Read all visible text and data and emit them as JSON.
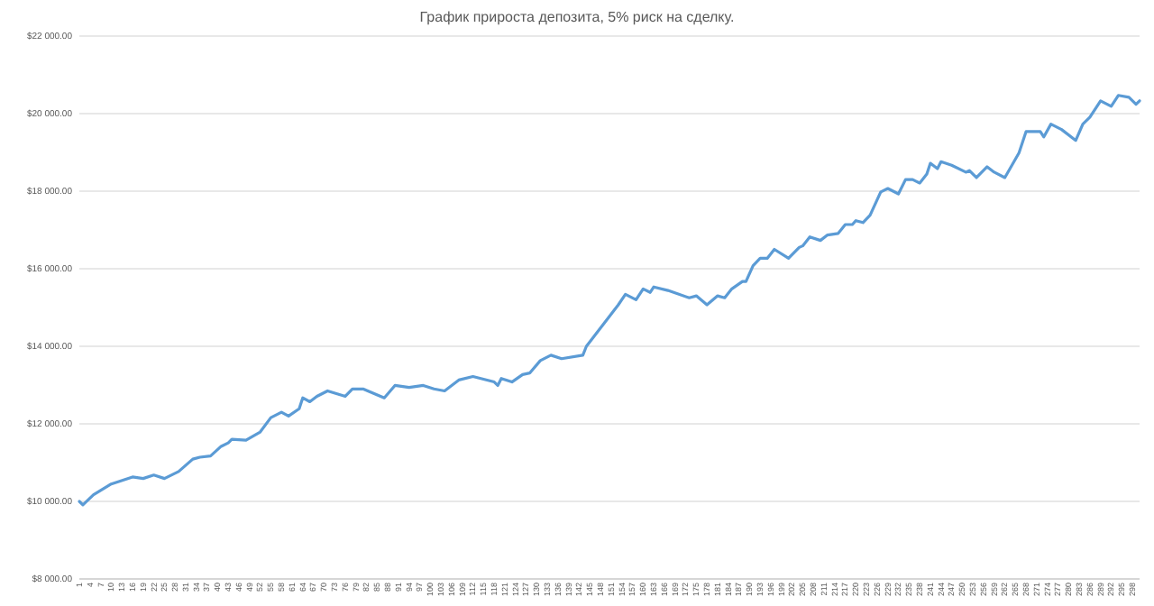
{
  "chart_data": {
    "type": "line",
    "title": "График прироста депозита, 5% риск на сделку.",
    "grid": "y",
    "xlim": [
      1,
      300
    ],
    "xticks": [
      1,
      4,
      7,
      10,
      13,
      16,
      19,
      22,
      25,
      28,
      31,
      34,
      37,
      40,
      43,
      46,
      49,
      52,
      55,
      58,
      61,
      64,
      67,
      70,
      73,
      76,
      79,
      82,
      85,
      88,
      91,
      94,
      97,
      100,
      103,
      106,
      109,
      112,
      115,
      118,
      121,
      124,
      127,
      130,
      133,
      136,
      139,
      142,
      145,
      148,
      151,
      154,
      157,
      160,
      163,
      166,
      169,
      172,
      175,
      178,
      181,
      184,
      187,
      190,
      193,
      196,
      199,
      202,
      205,
      208,
      211,
      214,
      217,
      220,
      223,
      226,
      229,
      232,
      235,
      238,
      241,
      244,
      247,
      250,
      253,
      256,
      259,
      262,
      265,
      268,
      271,
      274,
      277,
      280,
      283,
      286,
      289,
      292,
      295,
      298
    ],
    "ylim": [
      8000,
      22000
    ],
    "yticks": [
      {
        "value": 8000,
        "label": "$8 000.00"
      },
      {
        "value": 10000,
        "label": "$10 000.00"
      },
      {
        "value": 12000,
        "label": "$12 000.00"
      },
      {
        "value": 14000,
        "label": "$14 000.00"
      },
      {
        "value": 16000,
        "label": "$16 000.00"
      },
      {
        "value": 18000,
        "label": "$18 000.00"
      },
      {
        "value": 20000,
        "label": "$20 000.00"
      },
      {
        "value": 22000,
        "label": "$22 000.00"
      }
    ],
    "series": [
      {
        "color": "#5b9bd5",
        "x": [
          1,
          2,
          5,
          10,
          16,
          19,
          22,
          25,
          29,
          33,
          35,
          38,
          41,
          43,
          44,
          48,
          52,
          55,
          58,
          60,
          63,
          64,
          66,
          68,
          71,
          76,
          78,
          81,
          87,
          90,
          94,
          98,
          101,
          104,
          108,
          112,
          118,
          119,
          120,
          123,
          126,
          128,
          131,
          134,
          137,
          143,
          144,
          151,
          153,
          155,
          158,
          160,
          162,
          163,
          167,
          173,
          175,
          178,
          181,
          183,
          185,
          188,
          189,
          191,
          193,
          195,
          197,
          201,
          204,
          205,
          207,
          210,
          212,
          215,
          217,
          219,
          220,
          222,
          224,
          227,
          229,
          232,
          234,
          236,
          238,
          240,
          241,
          243,
          244,
          247,
          251,
          252,
          254,
          257,
          259,
          262,
          264,
          266,
          268,
          272,
          273,
          275,
          278,
          282,
          284,
          286,
          289,
          292,
          294,
          297,
          299,
          300
        ],
        "values": [
          10000,
          9910,
          10170,
          10450,
          10630,
          10590,
          10680,
          10590,
          10770,
          11090,
          11140,
          11170,
          11420,
          11510,
          11600,
          11580,
          11790,
          12160,
          12300,
          12200,
          12390,
          12670,
          12570,
          12710,
          12850,
          12710,
          12900,
          12900,
          12670,
          12990,
          12940,
          12990,
          12900,
          12850,
          13130,
          13220,
          13080,
          12990,
          13170,
          13080,
          13270,
          13310,
          13630,
          13770,
          13680,
          13770,
          14000,
          14830,
          15070,
          15340,
          15200,
          15480,
          15390,
          15530,
          15440,
          15250,
          15300,
          15070,
          15300,
          15250,
          15480,
          15670,
          15670,
          16080,
          16270,
          16270,
          16500,
          16270,
          16550,
          16590,
          16820,
          16730,
          16870,
          16910,
          17140,
          17140,
          17240,
          17190,
          17380,
          17980,
          18070,
          17930,
          18300,
          18300,
          18210,
          18440,
          18720,
          18580,
          18760,
          18670,
          18490,
          18530,
          18350,
          18630,
          18490,
          18350,
          18670,
          18990,
          19540,
          19540,
          19400,
          19730,
          19590,
          19310,
          19730,
          19910,
          20330,
          20190,
          20470,
          20420,
          20240,
          20330
        ]
      }
    ]
  }
}
